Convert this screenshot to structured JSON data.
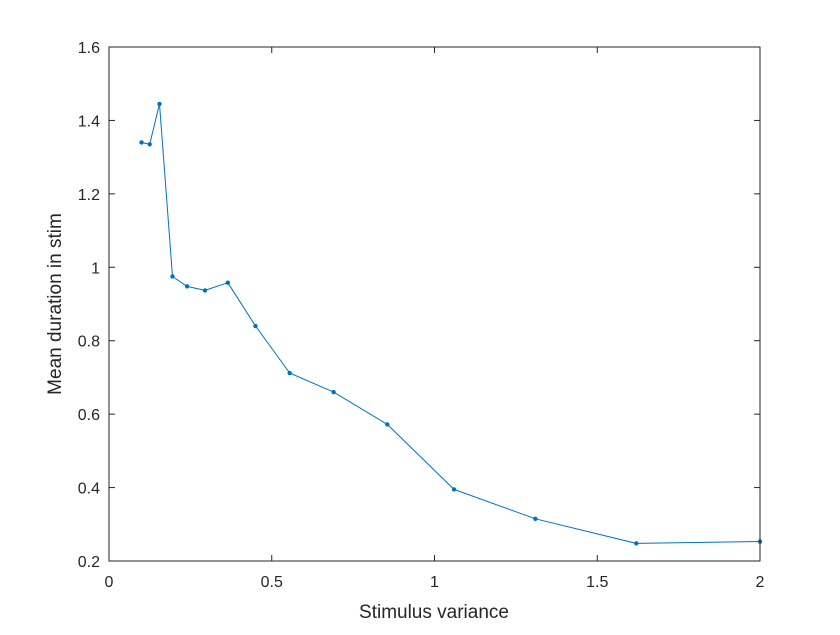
{
  "chart_data": {
    "type": "line",
    "title": "",
    "xlabel": "Stimulus variance",
    "ylabel": "Mean duration in stim",
    "xlim": [
      0,
      2
    ],
    "ylim": [
      0.2,
      1.6
    ],
    "xticks": [
      "0",
      "0.5",
      "1",
      "1.5",
      "2"
    ],
    "yticks": [
      "0.2",
      "0.4",
      "0.6",
      "0.8",
      "1",
      "1.2",
      "1.4",
      "1.6"
    ],
    "grid": false,
    "legend": "none",
    "series": [
      {
        "color": "#0072BD",
        "marker": "dot",
        "x": [
          0.1,
          0.125,
          0.155,
          0.195,
          0.24,
          0.295,
          0.365,
          0.45,
          0.555,
          0.69,
          0.855,
          1.06,
          1.31,
          1.62,
          2.0
        ],
        "y": [
          1.34,
          1.335,
          1.445,
          0.975,
          0.948,
          0.937,
          0.958,
          0.84,
          0.712,
          0.66,
          0.572,
          0.395,
          0.315,
          0.248,
          0.253
        ]
      }
    ]
  }
}
